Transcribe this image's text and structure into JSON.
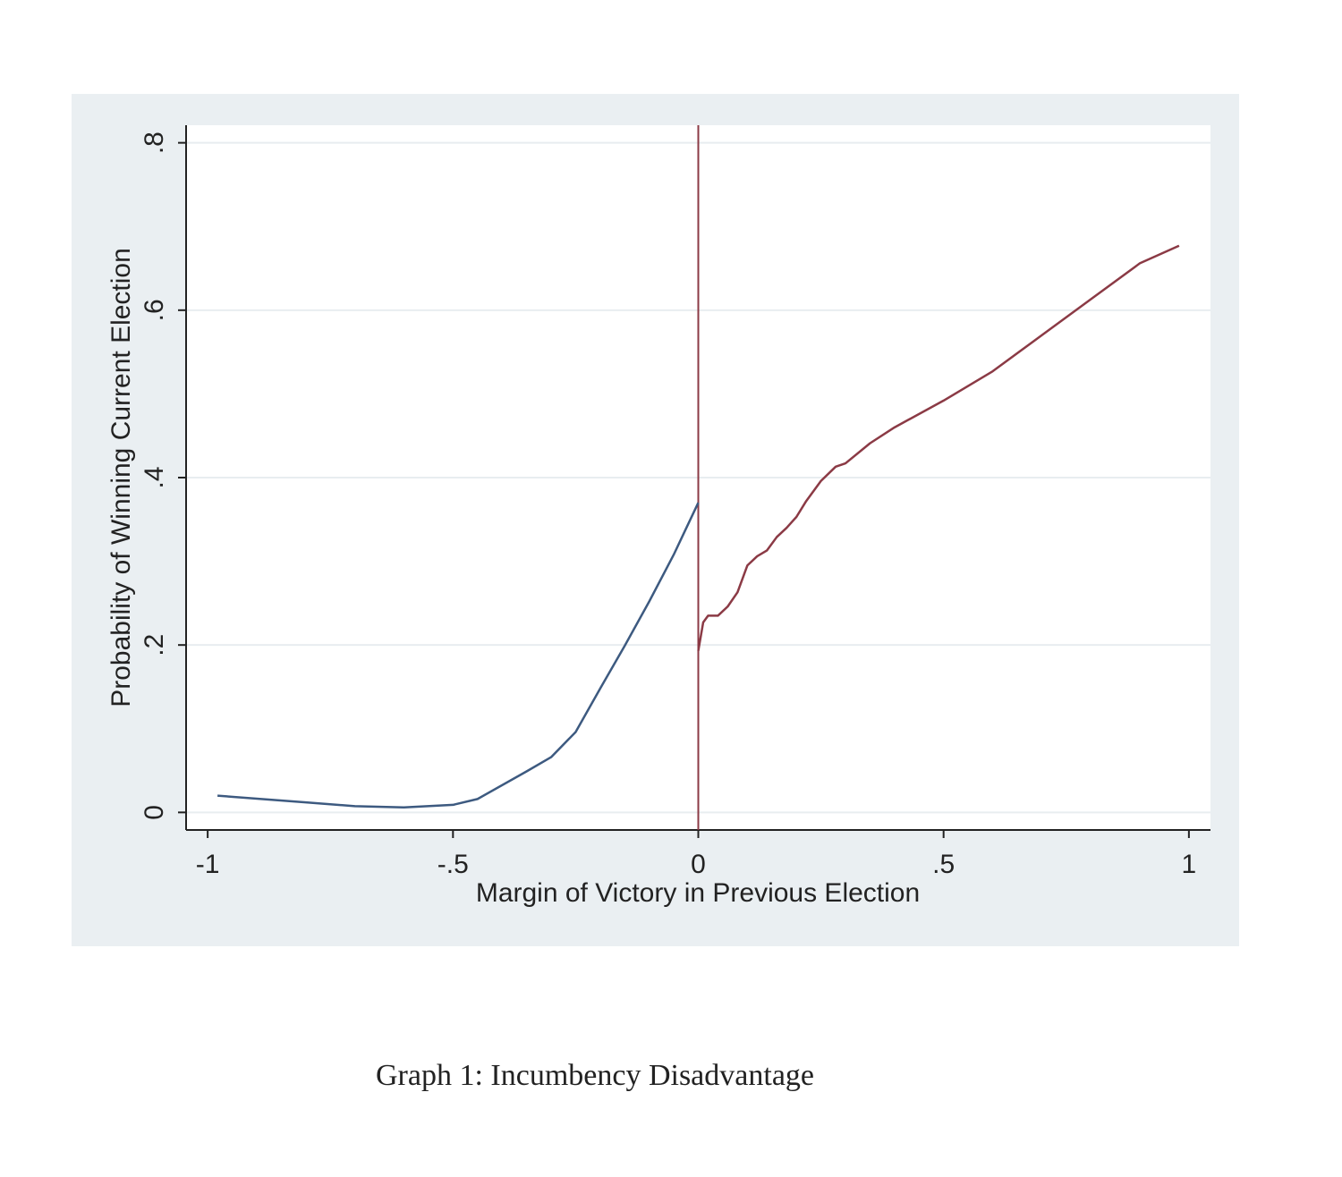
{
  "chart_data": {
    "type": "line",
    "x_label": "Margin of Victory in Previous Election",
    "y_label": "Probability of Winning Current Election",
    "caption": "Graph 1: Incumbency Disadvantage",
    "xlim": [
      -1.044,
      1.044
    ],
    "ylim": [
      -0.021,
      0.821
    ],
    "xticks": [
      -1,
      {
        "value": -0.5,
        "label": "-.5"
      },
      0,
      {
        "value": 0.5,
        "label": ".5"
      },
      1
    ],
    "yticks": [
      0,
      {
        "value": 0.2,
        "label": ".2"
      },
      {
        "value": 0.4,
        "label": ".4"
      },
      {
        "value": 0.6,
        "label": ".6"
      },
      {
        "value": 0.8,
        "label": ".8"
      }
    ],
    "grid": true,
    "vline": 0,
    "vline_color": "#8b3a45",
    "series": [
      {
        "color": "#3d5a80",
        "x": [
          -0.98,
          -0.8,
          -0.7,
          -0.6,
          -0.5,
          -0.45,
          -0.35,
          -0.3,
          -0.25,
          -0.2,
          -0.15,
          -0.1,
          -0.05,
          0
        ],
        "values": [
          0.02,
          0.012,
          0.0075,
          0.006,
          0.009,
          0.016,
          0.049,
          0.066,
          0.096,
          0.148,
          0.199,
          0.252,
          0.308,
          0.37
        ]
      },
      {
        "color": "#8b3a45",
        "x": [
          0,
          0.01,
          0.02,
          0.04,
          0.06,
          0.08,
          0.1,
          0.12,
          0.14,
          0.16,
          0.18,
          0.2,
          0.22,
          0.25,
          0.28,
          0.3,
          0.35,
          0.4,
          0.5,
          0.6,
          0.7,
          0.8,
          0.9,
          0.98
        ],
        "values": [
          0.193,
          0.227,
          0.235,
          0.235,
          0.246,
          0.263,
          0.295,
          0.306,
          0.313,
          0.329,
          0.34,
          0.353,
          0.372,
          0.396,
          0.413,
          0.417,
          0.441,
          0.46,
          0.492,
          0.527,
          0.57,
          0.613,
          0.656,
          0.677
        ]
      }
    ]
  }
}
